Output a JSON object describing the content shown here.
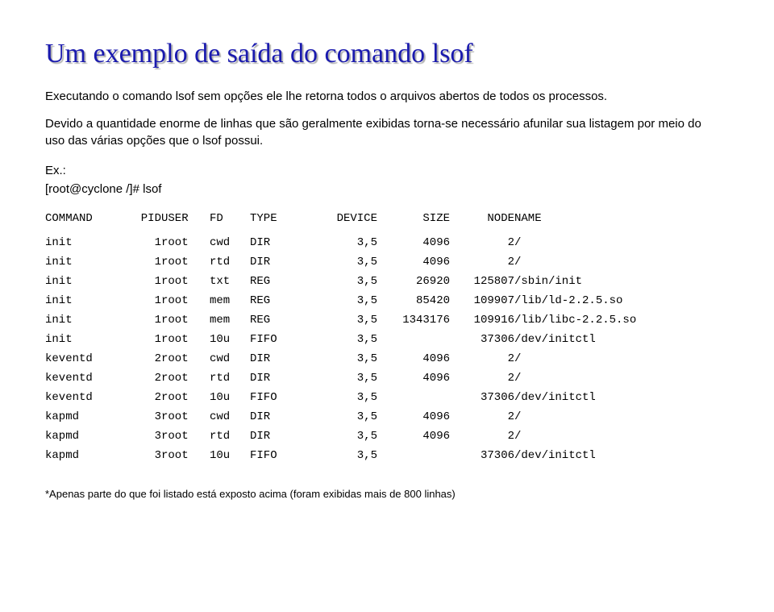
{
  "title": "Um exemplo de saída do comando lsof",
  "para1": "Executando o comando lsof sem opções ele lhe retorna todos o arquivos abertos de todos os processos.",
  "para2": "Devido a quantidade enorme de linhas que são geralmente exibidas torna-se necessário afunilar sua listagem por meio do uso das várias opções que o lsof possui.",
  "example_label": "Ex.:",
  "prompt": "[root@cyclone /]# lsof",
  "headers": {
    "command": "COMMAND",
    "pid": "PID",
    "user": "USER",
    "fd": "FD",
    "type": "TYPE",
    "device": "DEVICE",
    "size": "SIZE",
    "node": "NODE",
    "name": "NAME"
  },
  "rows": [
    {
      "command": "init",
      "pid": "1",
      "user": "root",
      "fd": "cwd",
      "type": "DIR",
      "device": "3,5",
      "size": "4096",
      "node": "2",
      "name": "/"
    },
    {
      "command": "init",
      "pid": "1",
      "user": "root",
      "fd": "rtd",
      "type": "DIR",
      "device": "3,5",
      "size": "4096",
      "node": "2",
      "name": "/"
    },
    {
      "command": "init",
      "pid": "1",
      "user": "root",
      "fd": "txt",
      "type": "REG",
      "device": "3,5",
      "size": "26920",
      "node": "125807",
      "name": "/sbin/init"
    },
    {
      "command": "init",
      "pid": "1",
      "user": "root",
      "fd": "mem",
      "type": "REG",
      "device": "3,5",
      "size": "85420",
      "node": "109907",
      "name": "/lib/ld-2.2.5.so"
    },
    {
      "command": "init",
      "pid": "1",
      "user": "root",
      "fd": "mem",
      "type": "REG",
      "device": "3,5",
      "size": "1343176",
      "node": "109916",
      "name": "/lib/libc-2.2.5.so"
    },
    {
      "command": "init",
      "pid": "1",
      "user": "root",
      "fd": "10u",
      "type": "FIFO",
      "device": "3,5",
      "size": "",
      "node": "37306",
      "name": "/dev/initctl"
    },
    {
      "command": "keventd",
      "pid": "2",
      "user": "root",
      "fd": "cwd",
      "type": "DIR",
      "device": "3,5",
      "size": "4096",
      "node": "2",
      "name": "/"
    },
    {
      "command": "keventd",
      "pid": "2",
      "user": "root",
      "fd": "rtd",
      "type": "DIR",
      "device": "3,5",
      "size": "4096",
      "node": "2",
      "name": "/"
    },
    {
      "command": "keventd",
      "pid": "2",
      "user": "root",
      "fd": "10u",
      "type": "FIFO",
      "device": "3,5",
      "size": "",
      "node": "37306",
      "name": "/dev/initctl"
    },
    {
      "command": "kapmd",
      "pid": "3",
      "user": "root",
      "fd": "cwd",
      "type": "DIR",
      "device": "3,5",
      "size": "4096",
      "node": "2",
      "name": "/"
    },
    {
      "command": "kapmd",
      "pid": "3",
      "user": "root",
      "fd": "rtd",
      "type": "DIR",
      "device": "3,5",
      "size": "4096",
      "node": "2",
      "name": "/"
    },
    {
      "command": "kapmd",
      "pid": "3",
      "user": "root",
      "fd": "10u",
      "type": "FIFO",
      "device": "3,5",
      "size": "",
      "node": "37306",
      "name": "/dev/initctl"
    }
  ],
  "footnote": "*Apenas parte do que foi listado está exposto acima (foram exibidas mais de 800 linhas)"
}
